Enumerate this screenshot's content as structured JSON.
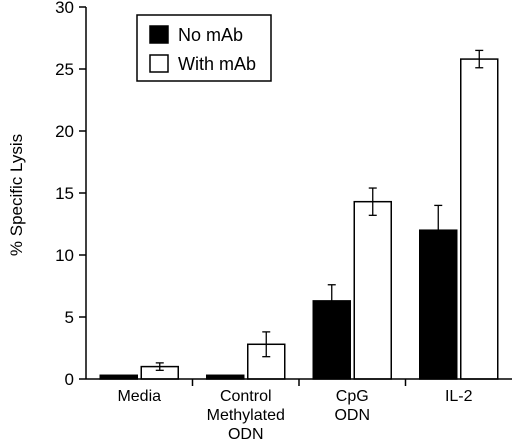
{
  "chart_data": {
    "type": "bar",
    "categories": [
      "Media",
      "Control Methylated ODN",
      "CpG ODN",
      "IL-2"
    ],
    "category_lines": [
      [
        "Media"
      ],
      [
        "Control",
        "Methylated",
        "ODN"
      ],
      [
        "CpG",
        "ODN"
      ],
      [
        "IL-2"
      ]
    ],
    "series": [
      {
        "name": "No mAb",
        "values": [
          0.3,
          0.3,
          6.3,
          12.0
        ],
        "errors": [
          null,
          null,
          1.3,
          2.0
        ],
        "color": "#000000"
      },
      {
        "name": "With mAb",
        "values": [
          1.0,
          2.8,
          14.3,
          25.8
        ],
        "errors": [
          0.3,
          1.0,
          1.1,
          0.7
        ],
        "color": "#ffffff"
      }
    ],
    "ylabel": "% Specific Lysis",
    "ylim": [
      0,
      30
    ],
    "yticks": [
      0,
      5,
      10,
      15,
      20,
      25,
      30
    ],
    "legend_position": "top-left",
    "grid": false
  }
}
